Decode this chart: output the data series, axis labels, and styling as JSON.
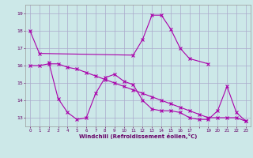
{
  "xlabel": "Windchill (Refroidissement éolien,°C)",
  "background_color": "#cce8e8",
  "grid_color": "#aaaacc",
  "line_color": "#aa00aa",
  "line1_x": [
    0,
    1,
    11,
    12,
    13,
    14,
    15,
    16,
    17,
    19
  ],
  "line1_y": [
    18.0,
    16.7,
    16.6,
    17.5,
    18.9,
    18.9,
    18.1,
    17.0,
    16.4,
    16.1
  ],
  "line2_x": [
    2,
    3,
    4,
    5,
    6,
    7,
    8,
    9,
    10,
    11,
    12,
    13,
    14,
    15,
    16,
    17,
    18,
    19,
    20,
    21,
    22,
    23
  ],
  "line2_y": [
    16.2,
    14.1,
    13.3,
    12.9,
    13.0,
    14.4,
    15.3,
    15.5,
    15.1,
    14.9,
    14.0,
    13.5,
    13.4,
    13.4,
    13.3,
    13.0,
    12.9,
    12.9,
    13.4,
    14.8,
    13.3,
    12.8
  ],
  "line3_x": [
    0,
    1,
    2,
    3,
    4,
    5,
    6,
    7,
    8,
    9,
    10,
    11,
    12,
    13,
    14,
    15,
    16,
    17,
    18,
    19,
    20,
    21,
    22,
    23
  ],
  "line3_y": [
    16.0,
    16.0,
    16.1,
    16.1,
    15.9,
    15.8,
    15.6,
    15.4,
    15.2,
    15.0,
    14.8,
    14.6,
    14.4,
    14.2,
    14.0,
    13.8,
    13.6,
    13.4,
    13.2,
    13.0,
    13.0,
    13.0,
    13.0,
    12.8
  ],
  "ylim": [
    12.5,
    19.5
  ],
  "yticks": [
    13,
    14,
    15,
    16,
    17,
    18,
    19
  ],
  "xticks": [
    0,
    1,
    2,
    3,
    4,
    5,
    6,
    7,
    8,
    9,
    10,
    11,
    12,
    13,
    14,
    15,
    16,
    17,
    18,
    19,
    20,
    21,
    22,
    23
  ],
  "xtick_labels": [
    "0",
    "1",
    "2",
    "3",
    "4",
    "5",
    "6",
    "7",
    "8",
    "9",
    "10",
    "11",
    "12",
    "13",
    "14",
    "15",
    "16",
    "17",
    "",
    "19",
    "20",
    "21",
    "22",
    "23"
  ]
}
